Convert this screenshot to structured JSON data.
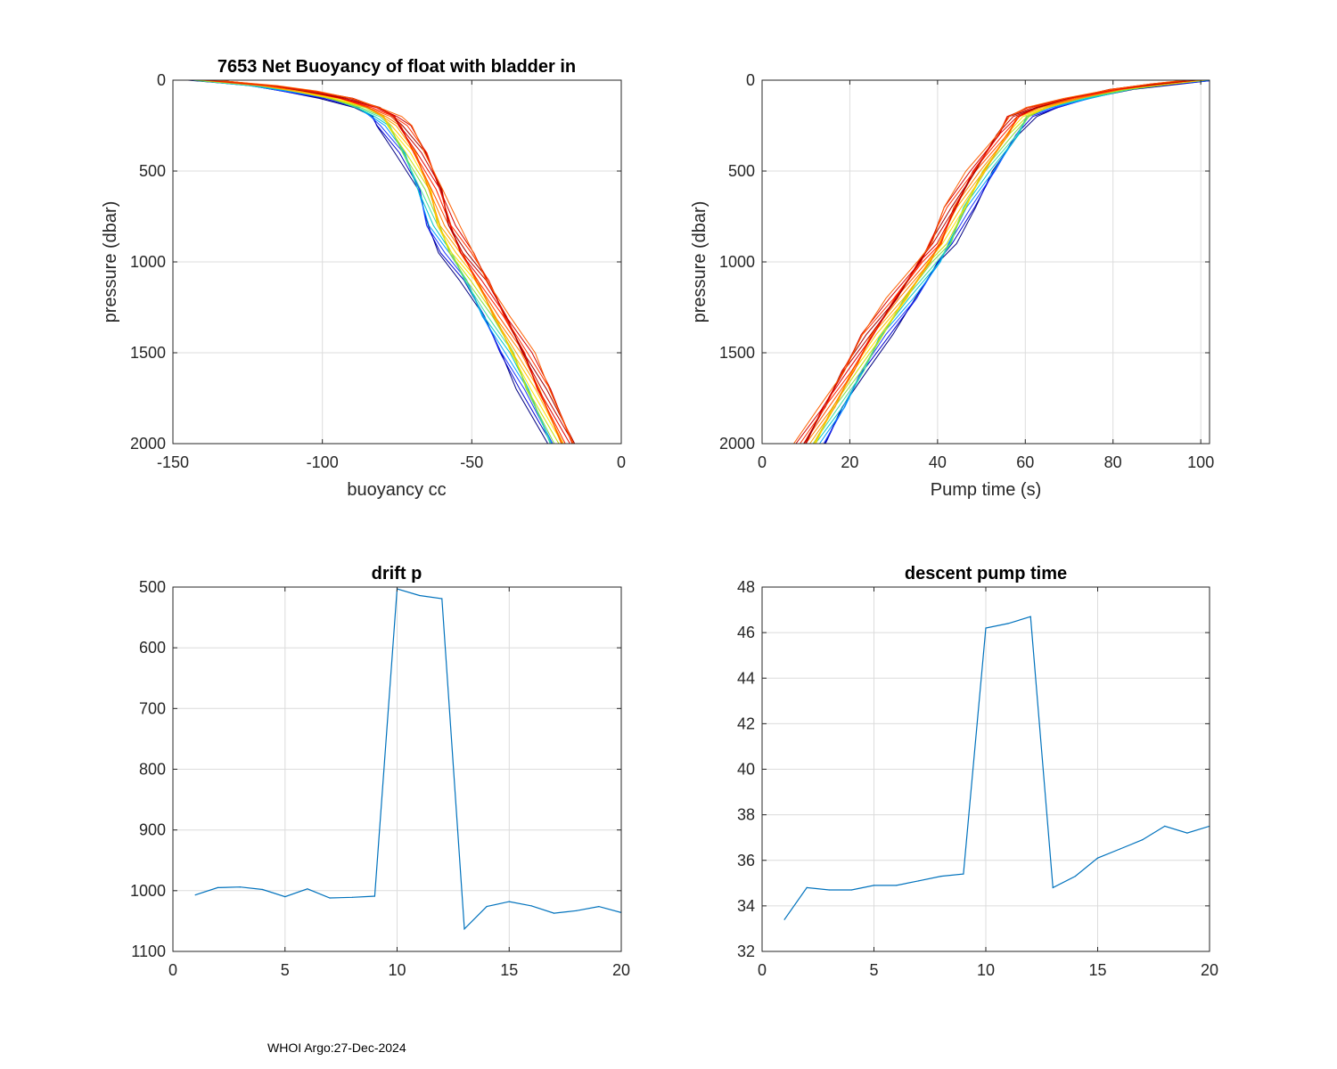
{
  "footer": "WHOI Argo:27-Dec-2024",
  "colors": {
    "series": "#0072BD",
    "axis": "#262626",
    "grid": "#dcdcdc"
  },
  "profile_colors": [
    "#000080",
    "#0000cd",
    "#1e3cff",
    "#00a0ff",
    "#00c8c8",
    "#40e0a0",
    "#80e040",
    "#c8e000",
    "#ffe000",
    "#ffc000",
    "#ffa000",
    "#ff8000",
    "#ff5000",
    "#ff2000",
    "#e00000",
    "#c00000",
    "#a00000",
    "#ff3000",
    "#d00000",
    "#ff6000"
  ],
  "chart_data": [
    {
      "id": "buoyancy",
      "type": "line",
      "title": "7653 Net Buoyancy of float with bladder in",
      "xlabel": "buoyancy cc",
      "ylabel": "pressure (dbar)",
      "xlim": [
        -150,
        0
      ],
      "ylim": [
        0,
        2000
      ],
      "y_reversed": true,
      "xticks": [
        -150,
        -100,
        -50,
        0
      ],
      "yticks": [
        0,
        500,
        1000,
        1500,
        2000
      ],
      "xtick_labels": [
        "-150",
        "-100",
        "-50",
        "0"
      ],
      "ytick_labels": [
        "0",
        "500",
        "1000",
        "1500",
        "2000"
      ],
      "base_profile": {
        "p": [
          0,
          30,
          60,
          100,
          150,
          200,
          250,
          400,
          600,
          800,
          950,
          1100,
          1300,
          1500,
          1700,
          2000
        ],
        "x": [
          -140,
          -120,
          -108,
          -95,
          -85,
          -79,
          -76,
          -70,
          -64,
          -60,
          -55,
          -49,
          -42,
          -35,
          -29,
          -20
        ]
      },
      "profile_count": 20
    },
    {
      "id": "pumptime",
      "type": "line",
      "title": "",
      "xlabel": "Pump time (s)",
      "ylabel": "pressure (dbar)",
      "xlim": [
        0,
        102
      ],
      "ylim": [
        0,
        2000
      ],
      "y_reversed": true,
      "xticks": [
        0,
        20,
        40,
        60,
        80,
        100
      ],
      "yticks": [
        0,
        500,
        1000,
        1500,
        2000
      ],
      "xtick_labels": [
        "0",
        "20",
        "40",
        "60",
        "80",
        "100"
      ],
      "ytick_labels": [
        "0",
        "500",
        "1000",
        "1500",
        "2000"
      ],
      "base_profile": {
        "p": [
          0,
          20,
          50,
          100,
          150,
          200,
          300,
          500,
          700,
          900,
          1000,
          1200,
          1400,
          1600,
          1800,
          2000
        ],
        "x": [
          100,
          92,
          82,
          72,
          64,
          59,
          56,
          50,
          45,
          41,
          38,
          32,
          26,
          21,
          16,
          11
        ]
      },
      "profile_count": 20
    },
    {
      "id": "drift",
      "type": "line",
      "title": "drift p",
      "xlabel": "",
      "ylabel": "",
      "xlim": [
        0,
        20
      ],
      "ylim": [
        500,
        1100
      ],
      "y_reversed": true,
      "xticks": [
        0,
        5,
        10,
        15,
        20
      ],
      "yticks": [
        500,
        600,
        700,
        800,
        900,
        1000,
        1100
      ],
      "xtick_labels": [
        "0",
        "5",
        "10",
        "15",
        "20"
      ],
      "ytick_labels": [
        "500",
        "600",
        "700",
        "800",
        "900",
        "1000",
        "1100"
      ],
      "x": [
        1,
        2,
        3,
        4,
        5,
        6,
        7,
        8,
        9,
        10,
        11,
        12,
        13,
        14,
        15,
        16,
        17,
        18,
        19,
        20
      ],
      "y": [
        1007,
        995,
        994,
        998,
        1010,
        997,
        1012,
        1011,
        1009,
        503,
        514,
        519,
        1063,
        1026,
        1018,
        1025,
        1037,
        1033,
        1026,
        1036
      ]
    },
    {
      "id": "descent",
      "type": "line",
      "title": "descent pump time",
      "xlabel": "",
      "ylabel": "",
      "xlim": [
        0,
        20
      ],
      "ylim": [
        32,
        48
      ],
      "y_reversed": false,
      "xticks": [
        0,
        5,
        10,
        15,
        20
      ],
      "yticks": [
        32,
        34,
        36,
        38,
        40,
        42,
        44,
        46,
        48
      ],
      "xtick_labels": [
        "0",
        "5",
        "10",
        "15",
        "20"
      ],
      "ytick_labels": [
        "32",
        "34",
        "36",
        "38",
        "40",
        "42",
        "44",
        "46",
        "48"
      ],
      "x": [
        1,
        2,
        3,
        4,
        5,
        6,
        7,
        8,
        9,
        10,
        11,
        12,
        13,
        14,
        15,
        16,
        17,
        18,
        19,
        20
      ],
      "y": [
        33.4,
        34.8,
        34.7,
        34.7,
        34.9,
        34.9,
        35.1,
        35.3,
        35.4,
        46.2,
        46.4,
        46.7,
        34.8,
        35.3,
        36.1,
        36.5,
        36.9,
        37.5,
        37.2,
        37.5
      ]
    }
  ]
}
